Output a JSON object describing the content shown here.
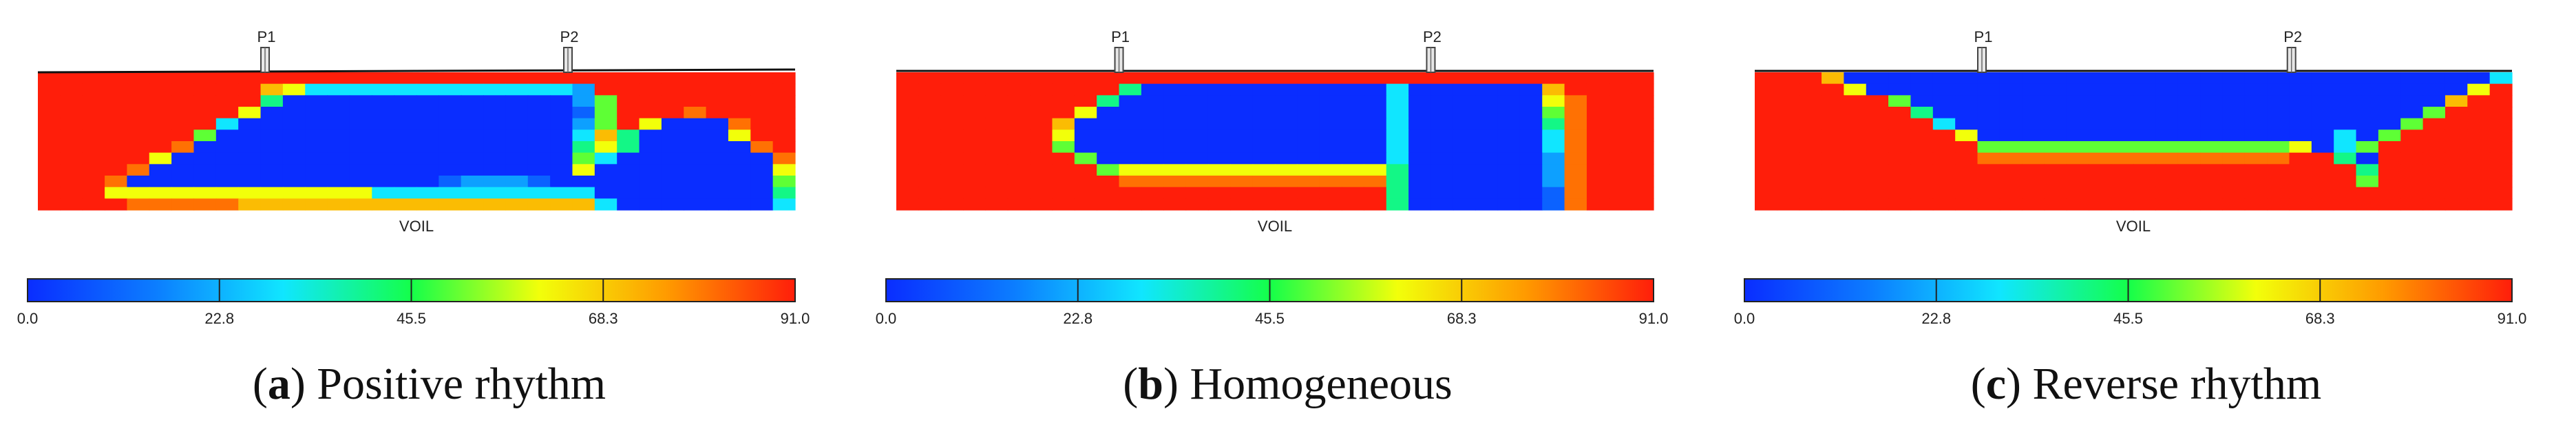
{
  "figure": {
    "colorbar": {
      "ticks": [
        "0.0",
        "22.8",
        "45.5",
        "68.3",
        "91.0"
      ],
      "min": 0.0,
      "max": 91.0,
      "stops": [
        "#0a2dff",
        "#0c7dff",
        "#10e6ff",
        "#14ff4a",
        "#f2ff0a",
        "#ff9a00",
        "#ff1e0a"
      ]
    },
    "grid_cols": 34,
    "grid_rows": 12,
    "panels": [
      {
        "letter": "a",
        "caption": "Positive rhythm",
        "field_label": "VOIL",
        "probes": [
          "P1",
          "P2"
        ],
        "probe_cols": [
          10.2,
          23.8
        ],
        "top_slope": "right-up",
        "grid": [
          "9999999999999999999999999999999999",
          "9999999999763333333333332999999999",
          "9999999999400000000000002599999999",
          "9999999996000000000000001599989999",
          "9999999930000000000000002596000899",
          "9999999500000000000000003740000699",
          "9999998000000000000000004640000089",
          "9999960000000000000000005300000008",
          "9999800000000000000000006000000006",
          "9998000000000000001222100000000005",
          "9996666666666663333333333000000004",
          "9999888887777777777777777300000003"
        ]
      },
      {
        "letter": "b",
        "caption": "Homogeneous",
        "field_label": "VOIL",
        "probes": [
          "P1",
          "P2"
        ],
        "probe_cols": [
          10.0,
          24.0
        ],
        "top_slope": "flat",
        "grid": [
          "9999999999999999999999999999999999",
          "9999999999400000000000300000079999",
          "9999999994000000000000300000068999",
          "9999999960000000000000300000058999",
          "9999999700000000000000300000048999",
          "9999999600000000000000300000038999",
          "9999999500000000000000300000038999",
          "9999999950000000000000300000028999",
          "9999999995666666666666400000028999",
          "9999999999888888888888400000028999",
          "9999999999999999999999400000018999",
          "9999999999999999999999400000018999"
        ]
      },
      {
        "letter": "c",
        "caption": "Reverse rhythm",
        "field_label": "VOIL",
        "probes": [
          "P1",
          "P2"
        ],
        "probe_cols": [
          10.2,
          24.1
        ],
        "top_slope": "flat",
        "grid": [
          "9997000000000000000000000000000003",
          "9999600000000000000000000000000069",
          "9999995000000000000000000000000799",
          "9999999400000000000000000000005999",
          "9999999930000000000000000000059999",
          "9999999996000000000000000030599999",
          "9999999999555555555555556035999999",
          "9999999999888888888888889940999999",
          "9999999999999999999999999994999999",
          "9999999999999999999999999995999999",
          "9999999999999999999999999999999999",
          "9999999999999999999999999999999999"
        ]
      }
    ]
  }
}
